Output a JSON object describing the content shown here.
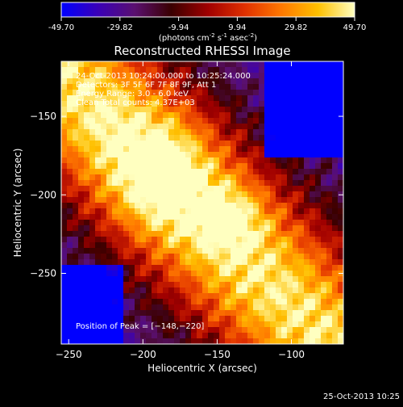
{
  "colorbar": {
    "ticks": [
      "-49.70",
      "-29.82",
      "-9.94",
      "9.94",
      "29.82",
      "49.70"
    ],
    "units_prefix": "(photons cm",
    "units_exp1": "-2",
    "units_mid": " s",
    "units_exp2": "-1",
    "units_mid2": " asec",
    "units_exp3": "-2",
    "units_suffix": ")",
    "range": [
      -49.7,
      49.7
    ],
    "colors": [
      "#0000ff",
      "#3a00b8",
      "#5a1070",
      "#3a0000",
      "#a00000",
      "#e03000",
      "#ff7800",
      "#ffc000",
      "#ffffc0"
    ]
  },
  "chart_data": {
    "type": "heatmap",
    "title": "Reconstructed RHESSI Image",
    "xlabel": "Heliocentric X (arcsec)",
    "ylabel": "Heliocentric Y (arcsec)",
    "xlim": [
      -255,
      -65
    ],
    "ylim": [
      -295,
      -115
    ],
    "x_ticks": [
      -250,
      -200,
      -150,
      -100
    ],
    "y_ticks": [
      -150,
      -200,
      -250
    ],
    "x_tick_labels": [
      "−250",
      "−200",
      "−150",
      "−100"
    ],
    "y_tick_labels": [
      "−150",
      "−200",
      "−250"
    ],
    "annotations": [
      "24-Oct-2013 10:24:00.000 to 10:25:24.000",
      "Detectors: 3F 5F 6F 7F 8F 9F, Att 1",
      "Energy Range: 3.0 - 6.0 keV",
      "Clean     Total counts: 4.37E+03"
    ],
    "peak_label": "Position of Peak = [−148,−220]",
    "peak": [
      -148,
      -220
    ],
    "grid": false
  },
  "footer": {
    "timestamp": "25-Oct-2013 10:25"
  }
}
